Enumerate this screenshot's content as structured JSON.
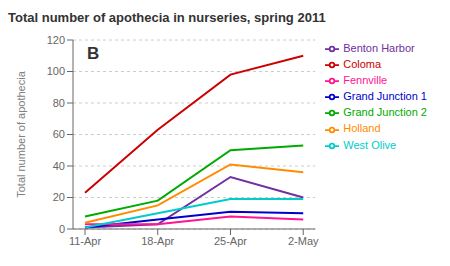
{
  "chart_data": {
    "type": "line",
    "title": "Total number of apothecia in nurseries, spring 2011",
    "ylabel": "Total number of apothecia",
    "categories": [
      "11-Apr",
      "18-Apr",
      "25-Apr",
      "2-May"
    ],
    "series": [
      {
        "name": "Benton Harbor",
        "color": "#7030A0",
        "values": [
          1,
          3,
          33,
          20
        ]
      },
      {
        "name": "Coloma",
        "color": "#CC0000",
        "values": [
          23,
          63,
          98,
          110
        ]
      },
      {
        "name": "Grand Junction 1",
        "color": "#0000CC",
        "values": [
          1,
          6,
          11,
          10
        ]
      },
      {
        "name": "Grand Junction 2",
        "color": "#00AA00",
        "values": [
          8,
          18,
          50,
          53
        ]
      },
      {
        "name": "Fennville",
        "color": "#FF1493",
        "values": [
          3,
          3,
          8,
          6
        ]
      },
      {
        "name": "Holland",
        "color": "#FF8C00",
        "values": [
          4,
          15,
          41,
          36
        ]
      },
      {
        "name": "West Olive",
        "color": "#00CCCC",
        "values": [
          1,
          10,
          19,
          19
        ]
      }
    ],
    "annotations": [
      "B"
    ],
    "ylim": [
      0,
      120
    ],
    "yticks": [
      0,
      20,
      40,
      60,
      80,
      100,
      120
    ],
    "grid": true,
    "legend": "right"
  }
}
